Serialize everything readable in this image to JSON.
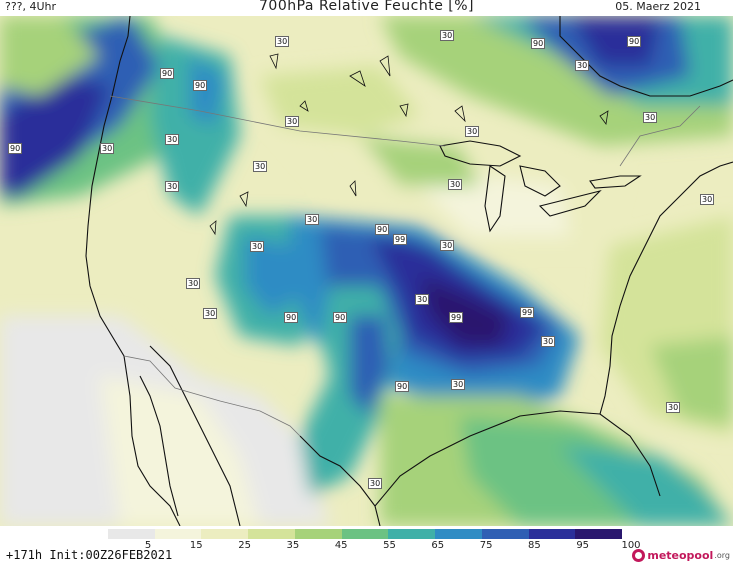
{
  "header": {
    "left": "???, 4Uhr",
    "title": "700hPa Relative Feuchte [%]",
    "right": "05. Maerz 2021"
  },
  "map": {
    "labels": [
      "90",
      "90",
      "90",
      "30",
      "90",
      "90",
      "30",
      "30",
      "30",
      "30",
      "30",
      "30",
      "90",
      "30",
      "30",
      "30",
      "30",
      "90",
      "99",
      "30",
      "30",
      "30",
      "90",
      "30",
      "99",
      "99",
      "30",
      "90",
      "30",
      "30",
      "30",
      "30",
      "30",
      "30"
    ]
  },
  "colorbar": {
    "ticks": [
      "5",
      "15",
      "25",
      "35",
      "45",
      "55",
      "65",
      "75",
      "85",
      "95",
      "100"
    ],
    "colors": [
      "#e8e8e8",
      "#f4f4dc",
      "#ecedc0",
      "#d4e39a",
      "#a6d27a",
      "#6cc283",
      "#3fb0a8",
      "#2f8cc4",
      "#2f5fb4",
      "#2b2f9a",
      "#2a176e"
    ]
  },
  "footer": {
    "run": "+171h Init:00Z26FEB2021",
    "logo": "meteopool",
    "logo_tld": ".org"
  }
}
